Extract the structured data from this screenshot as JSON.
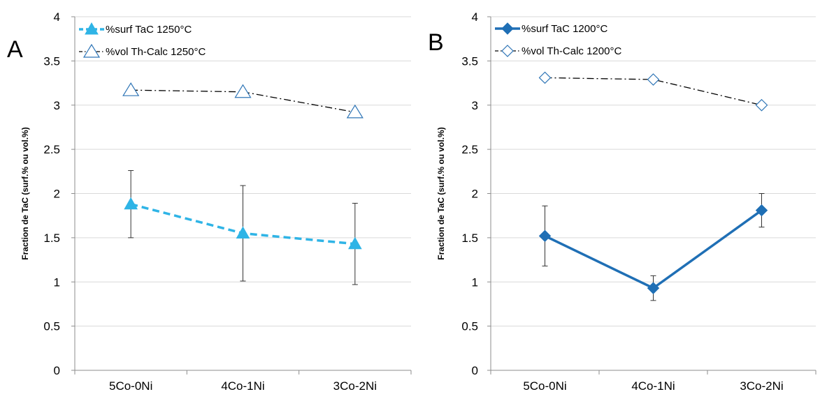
{
  "chart_data": [
    {
      "panel_label": "A",
      "type": "line",
      "categories": [
        "5Co-0Ni",
        "4Co-1Ni",
        "3Co-2Ni"
      ],
      "ylabel": "Fraction de TaC (surf.% ou vol.%)",
      "ylim": [
        0,
        4
      ],
      "yticks": [
        "0",
        "0.5",
        "1",
        "1.5",
        "2",
        "2.5",
        "3",
        "3.5",
        "4"
      ],
      "grid": true,
      "legend_position": "top-left",
      "series": [
        {
          "name": "%surf TaC 1250°C",
          "values": [
            1.88,
            1.55,
            1.43
          ],
          "error_low": [
            1.5,
            1.01,
            0.97
          ],
          "error_high": [
            2.26,
            2.09,
            1.89
          ],
          "color": "#2fb4e6",
          "line_style": "dashed",
          "marker": "filled-triangle"
        },
        {
          "name": "%vol Th-Calc 1250°C",
          "values": [
            3.17,
            3.15,
            2.92
          ],
          "color": "#000000",
          "line_style": "dash-dot",
          "marker": "open-triangle",
          "marker_color": "#2e75b6"
        }
      ]
    },
    {
      "panel_label": "B",
      "type": "line",
      "categories": [
        "5Co-0Ni",
        "4Co-1Ni",
        "3Co-2Ni"
      ],
      "ylabel": "Fraction de TaC (surf.% ou vol.%)",
      "ylim": [
        0,
        4
      ],
      "yticks": [
        "0",
        "0.5",
        "1",
        "1.5",
        "2",
        "2.5",
        "3",
        "3.5",
        "4"
      ],
      "grid": true,
      "legend_position": "top-left",
      "series": [
        {
          "name": "%surf TaC 1200°C",
          "values": [
            1.52,
            0.93,
            1.81
          ],
          "error_low": [
            1.18,
            0.79,
            1.62
          ],
          "error_high": [
            1.86,
            1.07,
            2.0
          ],
          "color": "#1f6fb5",
          "line_style": "solid",
          "marker": "filled-diamond"
        },
        {
          "name": "%vol Th-Calc 1200°C",
          "values": [
            3.31,
            3.29,
            3.0
          ],
          "color": "#000000",
          "line_style": "dash-dot",
          "marker": "open-diamond",
          "marker_color": "#2e75b6"
        }
      ]
    }
  ]
}
